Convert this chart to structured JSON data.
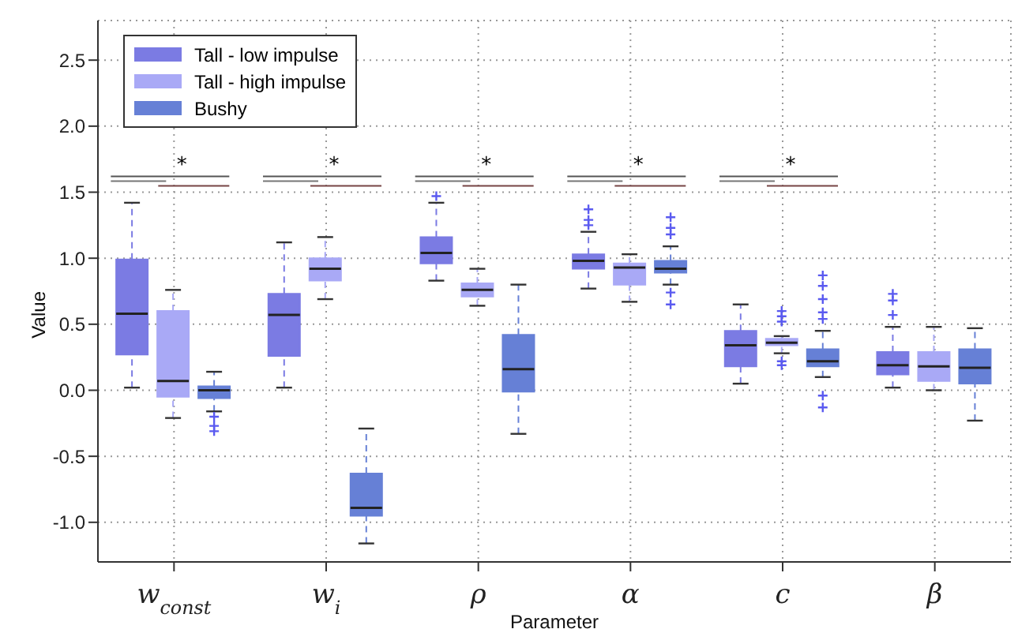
{
  "chart_data": {
    "type": "box",
    "xlabel": "Parameter",
    "ylabel": "Value",
    "categories": [
      "w$_{const}$",
      "w$_{i}$",
      "ρ",
      "α",
      "c",
      "β"
    ],
    "ylim": [
      -1.3,
      2.8
    ],
    "yticks": [
      {
        "value": -1.0,
        "label": "-1.0"
      },
      -0.5,
      {
        "value": 0.0,
        "label": "0.0"
      },
      0.5,
      {
        "value": 1.0,
        "label": "1.0"
      },
      1.5,
      {
        "value": 2.0,
        "label": "2.0"
      },
      2.5
    ],
    "grid": true,
    "legend": "top left",
    "annotations": [
      "*",
      "*",
      "*",
      "*",
      "*"
    ],
    "series": [
      {
        "name": "Tall - low impulse",
        "color": "#7b7be3",
        "boxes": [
          {
            "low": 0.02,
            "q1": 0.27,
            "median": 0.58,
            "q3": 0.99,
            "high": 1.42
          },
          {
            "low": 0.02,
            "q1": 0.26,
            "median": 0.57,
            "q3": 0.73,
            "high": 1.12
          },
          {
            "low": 0.83,
            "q1": 0.96,
            "median": 1.04,
            "q3": 1.16,
            "high": 1.42,
            "outliers": [
              1.47
            ]
          },
          {
            "low": 0.77,
            "q1": 0.92,
            "median": 0.98,
            "q3": 1.03,
            "high": 1.2,
            "outliers": [
              1.25,
              1.29,
              1.37
            ]
          },
          {
            "low": 0.05,
            "q1": 0.18,
            "median": 0.34,
            "q3": 0.45,
            "high": 0.65
          },
          {
            "low": 0.02,
            "q1": 0.12,
            "median": 0.19,
            "q3": 0.29,
            "high": 0.48,
            "outliers": [
              0.57,
              0.68,
              0.73
            ]
          }
        ]
      },
      {
        "name": "Tall - high impulse",
        "color": "#a9a9f6",
        "boxes": [
          {
            "low": -0.21,
            "q1": -0.05,
            "median": 0.07,
            "q3": 0.6,
            "high": 0.76
          },
          {
            "low": 0.69,
            "q1": 0.83,
            "median": 0.92,
            "q3": 1.0,
            "high": 1.16
          },
          {
            "low": 0.64,
            "q1": 0.71,
            "median": 0.76,
            "q3": 0.81,
            "high": 0.92
          },
          {
            "low": 0.67,
            "q1": 0.8,
            "median": 0.93,
            "q3": 0.96,
            "high": 1.03
          },
          {
            "low": 0.28,
            "q1": 0.34,
            "median": 0.36,
            "q3": 0.39,
            "high": 0.41,
            "outliers": [
              0.19,
              0.22,
              0.52,
              0.56,
              0.6
            ]
          },
          {
            "low": 0.0,
            "q1": 0.07,
            "median": 0.18,
            "q3": 0.29,
            "high": 0.48
          }
        ]
      },
      {
        "name": "Bushy",
        "color": "#6680d6",
        "boxes": [
          {
            "low": -0.16,
            "q1": -0.06,
            "median": 0.0,
            "q3": 0.03,
            "high": 0.14,
            "outliers": [
              -0.2,
              -0.27,
              -0.31
            ]
          },
          {
            "low": -1.16,
            "q1": -0.95,
            "median": -0.89,
            "q3": -0.63,
            "high": -0.29
          },
          {
            "low": -0.33,
            "q1": -0.01,
            "median": 0.16,
            "q3": 0.42,
            "high": 0.8
          },
          {
            "low": 0.8,
            "q1": 0.89,
            "median": 0.92,
            "q3": 0.98,
            "high": 1.09,
            "outliers": [
              0.65,
              0.74,
              1.18,
              1.23,
              1.31
            ]
          },
          {
            "low": 0.1,
            "q1": 0.18,
            "median": 0.22,
            "q3": 0.31,
            "high": 0.45,
            "outliers": [
              -0.13,
              -0.04,
              0.54,
              0.59,
              0.69,
              0.79,
              0.87
            ]
          },
          {
            "low": -0.23,
            "q1": 0.05,
            "median": 0.17,
            "q3": 0.31,
            "high": 0.47
          }
        ]
      }
    ]
  }
}
